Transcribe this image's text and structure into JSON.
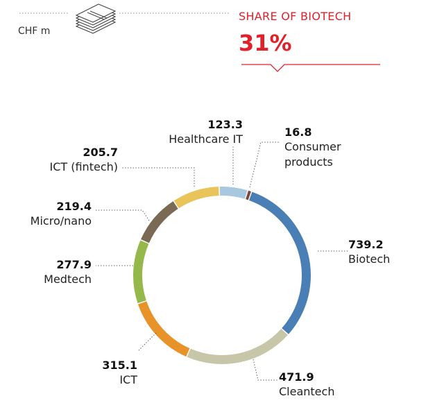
{
  "header": {
    "unit_label": "CHF m",
    "money_icon": "banknote-stack-icon",
    "share_heading": "SHARE OF BIOTECH",
    "share_value": "31%"
  },
  "colors": {
    "accent": "#e2202a"
  },
  "chart_data": {
    "type": "pie",
    "style": "donut",
    "unit": "CHF m",
    "title": "",
    "slices": [
      {
        "label": "Biotech",
        "value": 739.2,
        "value_text": "739.2",
        "color": "#4a7fb5"
      },
      {
        "label": "Cleantech",
        "value": 471.9,
        "value_text": "471.9",
        "color": "#c8c6a8"
      },
      {
        "label": "ICT",
        "value": 315.1,
        "value_text": "315.1",
        "color": "#e8922a"
      },
      {
        "label": "Medtech",
        "value": 277.9,
        "value_text": "277.9",
        "color": "#94b84a"
      },
      {
        "label": "Micro/nano",
        "value": 219.4,
        "value_text": "219.4",
        "color": "#7a6a55"
      },
      {
        "label": "ICT (fintech)",
        "value": 205.7,
        "value_text": "205.7",
        "color": "#e8c45a"
      },
      {
        "label": "Healthcare IT",
        "value": 123.3,
        "value_text": "123.3",
        "color": "#a8c8e0"
      },
      {
        "label": "Consumer products",
        "label_lines": [
          "Consumer",
          "products"
        ],
        "value": 16.8,
        "value_text": "16.8",
        "color": "#7a4a3a"
      }
    ]
  }
}
